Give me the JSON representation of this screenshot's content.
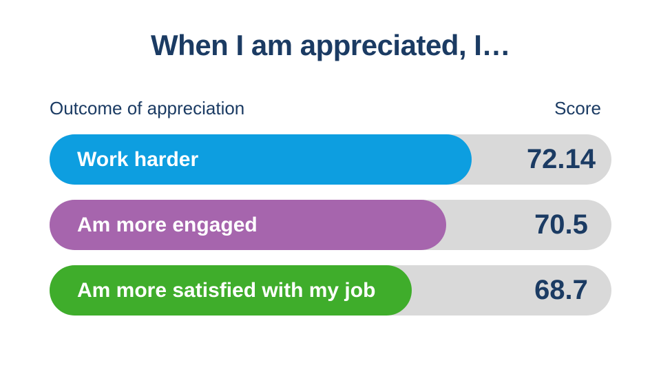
{
  "chart_data": {
    "type": "bar",
    "orientation": "horizontal",
    "title": "When I am appreciated, I…",
    "column_headers": {
      "category": "Outcome of appreciation",
      "value": "Score"
    },
    "categories": [
      "Work harder",
      "Am more engaged",
      "Am more satisfied with my job"
    ],
    "values": [
      72.14,
      70.5,
      68.7
    ],
    "value_labels": [
      "72.14",
      "70.5",
      "68.7"
    ],
    "bar_colors": [
      "#0d9ee0",
      "#a665ad",
      "#3fad2b"
    ],
    "fill_percents": [
      75.1,
      70.6,
      64.4
    ],
    "track_color": "#d9d9d9",
    "title_color": "#1b3b63",
    "value_text_color": "#1b3b63",
    "bar_label_color": "#ffffff",
    "background_color": "#ffffff",
    "legend": "none",
    "grid": false
  }
}
